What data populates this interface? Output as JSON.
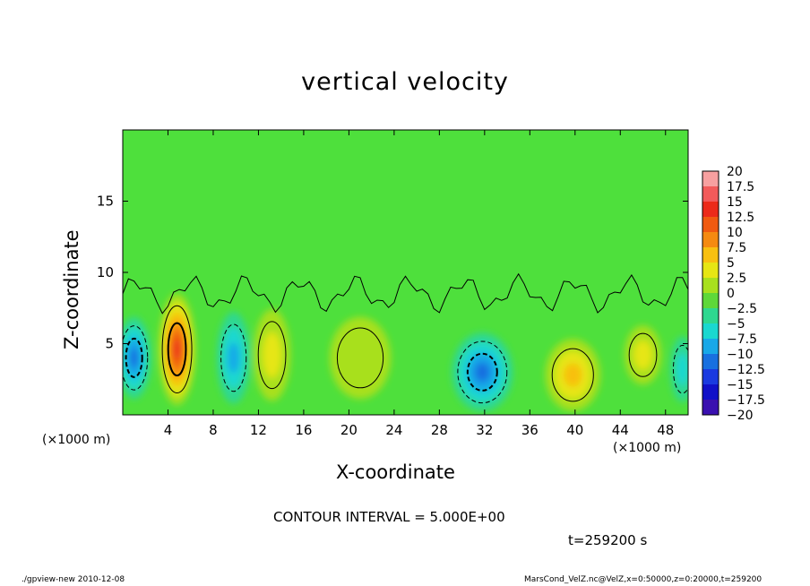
{
  "chart_data": {
    "type": "heatmap",
    "title": "vertical velocity",
    "xlabel": "X-coordinate",
    "ylabel": "Z-coordinate",
    "x_unit_label": "(×1000 m)",
    "xlim": [
      0,
      50
    ],
    "ylim": [
      0,
      20
    ],
    "x_ticks": [
      "4",
      "8",
      "12",
      "16",
      "20",
      "24",
      "28",
      "32",
      "36",
      "40",
      "44",
      "48"
    ],
    "x_tick_values": [
      4,
      8,
      12,
      16,
      20,
      24,
      28,
      32,
      36,
      40,
      44,
      48
    ],
    "y_ticks": [
      "5",
      "10",
      "15"
    ],
    "y_tick_values": [
      5,
      10,
      15
    ],
    "colorbar": {
      "labels": [
        "20",
        "17.5",
        "15",
        "12.5",
        "10",
        "7.5",
        "5",
        "2.5",
        "0",
        "−2.5",
        "−5",
        "−7.5",
        "−10",
        "−12.5",
        "−15",
        "−17.5",
        "−20"
      ],
      "colors": [
        "#f7a0a0",
        "#f25a5a",
        "#ec2a1a",
        "#f05a10",
        "#f58a10",
        "#f8c010",
        "#e6e614",
        "#a8e01e",
        "#5ed83a",
        "#2ed890",
        "#1ad8d0",
        "#18a8e8",
        "#1870e0",
        "#1a3ae0",
        "#1010c8",
        "#3a10b0",
        "#7010b0"
      ]
    },
    "field_blobs": [
      {
        "x": 1.0,
        "z": 4.0,
        "value": -10,
        "sx": 1.1,
        "sz": 2.5
      },
      {
        "x": 4.8,
        "z": 4.6,
        "value": 16,
        "sx": 1.2,
        "sz": 3.4
      },
      {
        "x": 9.8,
        "z": 4.0,
        "value": -8,
        "sx": 1.1,
        "sz": 2.8
      },
      {
        "x": 13.2,
        "z": 4.2,
        "value": 5,
        "sx": 1.2,
        "sz": 2.8
      },
      {
        "x": 21.0,
        "z": 4.0,
        "value": 2.5,
        "sx": 2.0,
        "sz": 2.5
      },
      {
        "x": 31.8,
        "z": 3.0,
        "value": -10,
        "sx": 2.0,
        "sz": 2.4
      },
      {
        "x": 39.8,
        "z": 2.8,
        "value": 8,
        "sx": 1.8,
        "sz": 2.2
      },
      {
        "x": 46.0,
        "z": 4.2,
        "value": 5,
        "sx": 1.2,
        "sz": 1.8
      },
      {
        "x": 49.5,
        "z": 3.2,
        "value": -6,
        "sx": 0.8,
        "sz": 2.0
      }
    ],
    "contour_interval_text": "CONTOUR INTERVAL = 5.000E+00",
    "time_text": "t=259200 s"
  },
  "footer": {
    "left": "./gpview-new  2010-12-08",
    "right": "MarsCond_VelZ.nc@VelZ,x=0:50000,z=0:20000,t=259200"
  }
}
